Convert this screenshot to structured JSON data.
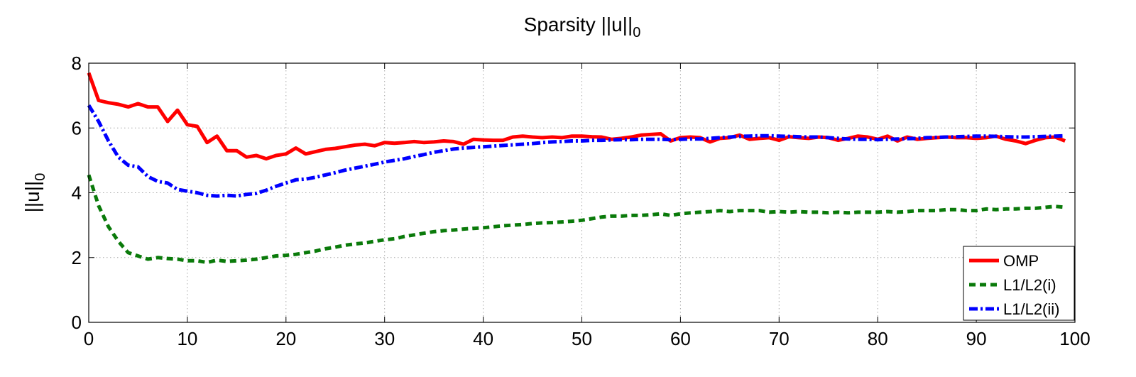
{
  "chart_data": {
    "type": "line",
    "title": "Sparsity ||u||",
    "title_subscript": "0",
    "ylabel": "||u||",
    "ylabel_subscript": "0",
    "xlabel": "",
    "xlim": [
      0,
      100
    ],
    "ylim": [
      0,
      8
    ],
    "x_ticks": [
      0,
      10,
      20,
      30,
      40,
      50,
      60,
      70,
      80,
      90,
      100
    ],
    "y_ticks": [
      0,
      2,
      4,
      6,
      8
    ],
    "grid": true,
    "legend_position": "bottom-right",
    "x": [
      0,
      1,
      2,
      3,
      4,
      5,
      6,
      7,
      8,
      9,
      10,
      11,
      12,
      13,
      14,
      15,
      16,
      17,
      18,
      19,
      20,
      21,
      22,
      23,
      24,
      25,
      26,
      27,
      28,
      29,
      30,
      31,
      32,
      33,
      34,
      35,
      36,
      37,
      38,
      39,
      40,
      41,
      42,
      43,
      44,
      45,
      46,
      47,
      48,
      49,
      50,
      51,
      52,
      53,
      54,
      55,
      56,
      57,
      58,
      59,
      60,
      61,
      62,
      63,
      64,
      65,
      66,
      67,
      68,
      69,
      70,
      71,
      72,
      73,
      74,
      75,
      76,
      77,
      78,
      79,
      80,
      81,
      82,
      83,
      84,
      85,
      86,
      87,
      88,
      89,
      90,
      91,
      92,
      93,
      94,
      95,
      96,
      97,
      98,
      99
    ],
    "series": [
      {
        "name": "OMP",
        "color": "#ff0000",
        "style": "solid",
        "values": [
          7.7,
          6.85,
          6.78,
          6.73,
          6.65,
          6.75,
          6.65,
          6.65,
          6.2,
          6.55,
          6.1,
          6.05,
          5.55,
          5.75,
          5.3,
          5.3,
          5.1,
          5.15,
          5.05,
          5.15,
          5.2,
          5.38,
          5.2,
          5.27,
          5.34,
          5.37,
          5.42,
          5.47,
          5.5,
          5.45,
          5.55,
          5.53,
          5.55,
          5.58,
          5.55,
          5.57,
          5.6,
          5.58,
          5.5,
          5.65,
          5.63,
          5.62,
          5.62,
          5.72,
          5.75,
          5.72,
          5.7,
          5.72,
          5.7,
          5.75,
          5.75,
          5.73,
          5.72,
          5.65,
          5.68,
          5.72,
          5.78,
          5.8,
          5.82,
          5.6,
          5.7,
          5.72,
          5.7,
          5.57,
          5.68,
          5.7,
          5.78,
          5.65,
          5.68,
          5.7,
          5.62,
          5.73,
          5.7,
          5.68,
          5.72,
          5.7,
          5.62,
          5.68,
          5.75,
          5.72,
          5.65,
          5.75,
          5.6,
          5.72,
          5.65,
          5.68,
          5.7,
          5.72,
          5.7,
          5.7,
          5.68,
          5.7,
          5.75,
          5.65,
          5.6,
          5.52,
          5.62,
          5.7,
          5.72,
          5.6
        ]
      },
      {
        "name": "L1/L2(i)",
        "color": "#0a7a0a",
        "style": "dashed",
        "values": [
          4.55,
          3.6,
          2.95,
          2.5,
          2.15,
          2.05,
          1.95,
          2.0,
          1.97,
          1.95,
          1.9,
          1.9,
          1.85,
          1.92,
          1.88,
          1.9,
          1.92,
          1.95,
          2.0,
          2.05,
          2.07,
          2.1,
          2.15,
          2.2,
          2.27,
          2.32,
          2.38,
          2.42,
          2.45,
          2.5,
          2.55,
          2.58,
          2.65,
          2.7,
          2.75,
          2.8,
          2.83,
          2.85,
          2.88,
          2.9,
          2.92,
          2.95,
          2.98,
          3.0,
          3.02,
          3.05,
          3.07,
          3.08,
          3.1,
          3.12,
          3.15,
          3.2,
          3.25,
          3.28,
          3.28,
          3.3,
          3.3,
          3.32,
          3.35,
          3.3,
          3.35,
          3.38,
          3.4,
          3.42,
          3.45,
          3.42,
          3.45,
          3.45,
          3.45,
          3.4,
          3.42,
          3.4,
          3.42,
          3.4,
          3.4,
          3.38,
          3.4,
          3.38,
          3.4,
          3.4,
          3.4,
          3.42,
          3.4,
          3.42,
          3.45,
          3.45,
          3.45,
          3.48,
          3.48,
          3.45,
          3.45,
          3.5,
          3.48,
          3.5,
          3.5,
          3.52,
          3.52,
          3.55,
          3.58,
          3.55
        ]
      },
      {
        "name": "L1/L2(ii)",
        "color": "#0000ff",
        "style": "dashdot",
        "values": [
          6.7,
          6.2,
          5.6,
          5.1,
          4.85,
          4.8,
          4.5,
          4.35,
          4.3,
          4.1,
          4.05,
          4.0,
          3.92,
          3.9,
          3.92,
          3.9,
          3.95,
          3.98,
          4.08,
          4.2,
          4.3,
          4.4,
          4.42,
          4.48,
          4.55,
          4.62,
          4.7,
          4.76,
          4.82,
          4.88,
          4.95,
          5.0,
          5.05,
          5.12,
          5.18,
          5.25,
          5.3,
          5.35,
          5.38,
          5.4,
          5.42,
          5.44,
          5.46,
          5.48,
          5.5,
          5.52,
          5.55,
          5.57,
          5.58,
          5.6,
          5.6,
          5.62,
          5.62,
          5.63,
          5.64,
          5.64,
          5.65,
          5.65,
          5.65,
          5.64,
          5.65,
          5.66,
          5.66,
          5.68,
          5.7,
          5.72,
          5.74,
          5.75,
          5.76,
          5.76,
          5.75,
          5.74,
          5.73,
          5.72,
          5.72,
          5.7,
          5.68,
          5.66,
          5.65,
          5.65,
          5.64,
          5.65,
          5.66,
          5.67,
          5.68,
          5.7,
          5.71,
          5.72,
          5.73,
          5.74,
          5.75,
          5.75,
          5.74,
          5.73,
          5.72,
          5.72,
          5.73,
          5.74,
          5.75,
          5.76
        ]
      }
    ]
  }
}
